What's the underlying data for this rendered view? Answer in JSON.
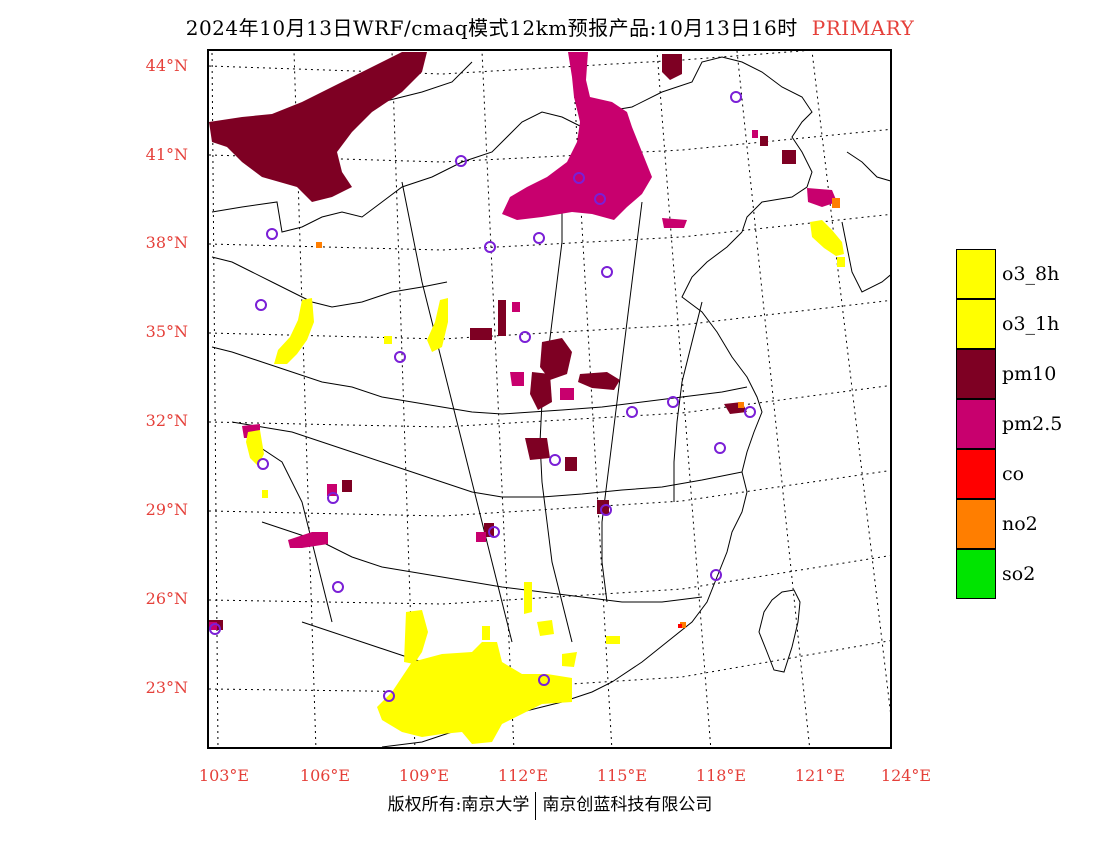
{
  "title": {
    "main": "2024年10月13日WRF/cmaq模式12km预报产品:10月13日16时",
    "tag": "PRIMARY",
    "tag_color": "#e5403a"
  },
  "map": {
    "lat_labels": [
      "44°N",
      "41°N",
      "38°N",
      "35°N",
      "32°N",
      "29°N",
      "26°N",
      "23°N"
    ],
    "lon_labels": [
      "103°E",
      "106°E",
      "109°E",
      "112°E",
      "115°E",
      "118°E",
      "121°E",
      "124°E"
    ],
    "label_color": "#e5403a"
  },
  "legend": [
    {
      "label": "o3_8h",
      "color": "#ffff00"
    },
    {
      "label": "o3_1h",
      "color": "#ffff00"
    },
    {
      "label": "pm10",
      "color": "#7e0023"
    },
    {
      "label": "pm2.5",
      "color": "#c8006e"
    },
    {
      "label": "co",
      "color": "#ff0000"
    },
    {
      "label": "no2",
      "color": "#ff7e00"
    },
    {
      "label": "so2",
      "color": "#00e400"
    }
  ],
  "footer": {
    "left": "版权所有:南京大学",
    "right": "南京创蓝科技有限公司"
  }
}
